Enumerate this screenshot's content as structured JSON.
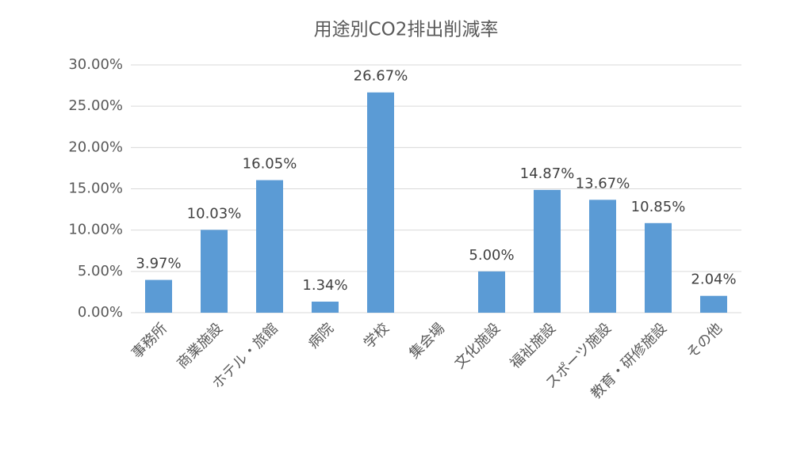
{
  "chart_data": {
    "type": "bar",
    "title": "用途別CO2排出削減率",
    "categories": [
      "事務所",
      "商業施設",
      "ホテル・旅館",
      "病院",
      "学校",
      "集会場",
      "文化施設",
      "福祉施設",
      "スポーツ施設",
      "教育・研修施設",
      "その他"
    ],
    "values": [
      3.97,
      10.03,
      16.05,
      1.34,
      26.67,
      null,
      5.0,
      14.87,
      13.67,
      10.85,
      2.04
    ],
    "value_labels": [
      "3.97%",
      "10.03%",
      "16.05%",
      "1.34%",
      "26.67%",
      null,
      "5.00%",
      "14.87%",
      "13.67%",
      "10.85%",
      "2.04%"
    ],
    "color": "#5b9bd5",
    "ylim": [
      0,
      30
    ],
    "yticks": [
      {
        "value": 0,
        "label": "0.00%"
      },
      {
        "value": 5,
        "label": "5.00%"
      },
      {
        "value": 10,
        "label": "10.00%"
      },
      {
        "value": 15,
        "label": "15.00%"
      },
      {
        "value": 20,
        "label": "20.00%"
      },
      {
        "value": 25,
        "label": "25.00%"
      },
      {
        "value": 30,
        "label": "30.00%"
      }
    ],
    "grid": true
  }
}
